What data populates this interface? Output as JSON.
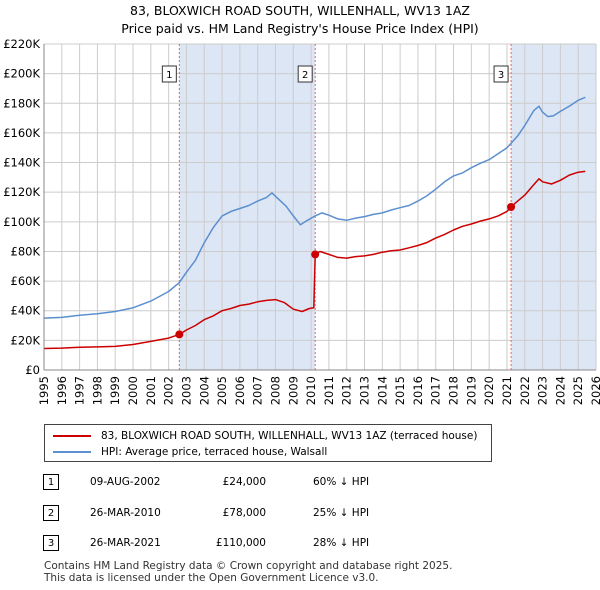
{
  "title_line1": "83, BLOXWICH ROAD SOUTH, WILLENHALL, WV13 1AZ",
  "title_line2": "Price paid vs. HM Land Registry's House Price Index (HPI)",
  "colors": {
    "property": "#cc0000",
    "hpi": "#5b8fd0",
    "shade": "#dde6f5",
    "grid": "#cccccc"
  },
  "chart_data": {
    "type": "line",
    "xlim": [
      1995,
      2026
    ],
    "ylim": [
      0,
      220000
    ],
    "x_ticks": [
      "1995",
      "1996",
      "1997",
      "1998",
      "1999",
      "2000",
      "2001",
      "2002",
      "2003",
      "2004",
      "2005",
      "2006",
      "2007",
      "2008",
      "2009",
      "2010",
      "2011",
      "2012",
      "2013",
      "2014",
      "2015",
      "2016",
      "2017",
      "2018",
      "2019",
      "2020",
      "2021",
      "2022",
      "2023",
      "2024",
      "2025",
      "2026"
    ],
    "y_ticks": [
      {
        "value": 0,
        "label": "£0"
      },
      {
        "value": 20000,
        "label": "£20K"
      },
      {
        "value": 40000,
        "label": "£40K"
      },
      {
        "value": 60000,
        "label": "£60K"
      },
      {
        "value": 80000,
        "label": "£80K"
      },
      {
        "value": 100000,
        "label": "£100K"
      },
      {
        "value": 120000,
        "label": "£120K"
      },
      {
        "value": 140000,
        "label": "£140K"
      },
      {
        "value": 160000,
        "label": "£160K"
      },
      {
        "value": 180000,
        "label": "£180K"
      },
      {
        "value": 200000,
        "label": "£200K"
      },
      {
        "value": 220000,
        "label": "£220K"
      }
    ],
    "shaded_ranges": [
      [
        2002.6,
        2010.23
      ],
      [
        2021.23,
        2026
      ]
    ],
    "series": [
      {
        "name": "83, BLOXWICH ROAD SOUTH, WILLENHALL, WV13 1AZ (terraced house)",
        "color": "#cc0000",
        "points": [
          [
            1995.0,
            14500
          ],
          [
            1996.0,
            14800
          ],
          [
            1997.0,
            15300
          ],
          [
            1998.0,
            15600
          ],
          [
            1999.0,
            15900
          ],
          [
            2000.0,
            17200
          ],
          [
            2001.0,
            19300
          ],
          [
            2002.0,
            21500
          ],
          [
            2002.6,
            24000
          ],
          [
            2003.0,
            27000
          ],
          [
            2003.5,
            30000
          ],
          [
            2004.0,
            34000
          ],
          [
            2004.5,
            36500
          ],
          [
            2005.0,
            40000
          ],
          [
            2005.5,
            41500
          ],
          [
            2006.0,
            43500
          ],
          [
            2006.5,
            44500
          ],
          [
            2007.0,
            46000
          ],
          [
            2007.5,
            47000
          ],
          [
            2008.0,
            47500
          ],
          [
            2008.5,
            45500
          ],
          [
            2009.0,
            41000
          ],
          [
            2009.5,
            39500
          ],
          [
            2009.9,
            41500
          ],
          [
            2010.15,
            42000
          ],
          [
            2010.23,
            78000
          ],
          [
            2010.5,
            80000
          ],
          [
            2011.0,
            78000
          ],
          [
            2011.5,
            76000
          ],
          [
            2012.0,
            75500
          ],
          [
            2012.5,
            76500
          ],
          [
            2013.0,
            77000
          ],
          [
            2013.5,
            78000
          ],
          [
            2014.0,
            79500
          ],
          [
            2014.5,
            80500
          ],
          [
            2015.0,
            81000
          ],
          [
            2015.5,
            82500
          ],
          [
            2016.0,
            84000
          ],
          [
            2016.5,
            86000
          ],
          [
            2017.0,
            89000
          ],
          [
            2017.5,
            91500
          ],
          [
            2018.0,
            94500
          ],
          [
            2018.5,
            97000
          ],
          [
            2019.0,
            98500
          ],
          [
            2019.5,
            100500
          ],
          [
            2020.0,
            102000
          ],
          [
            2020.5,
            104000
          ],
          [
            2021.0,
            107000
          ],
          [
            2021.23,
            110000
          ],
          [
            2021.5,
            113000
          ],
          [
            2022.0,
            118000
          ],
          [
            2022.5,
            125000
          ],
          [
            2022.8,
            129000
          ],
          [
            2023.0,
            127000
          ],
          [
            2023.5,
            125500
          ],
          [
            2024.0,
            128000
          ],
          [
            2024.5,
            131500
          ],
          [
            2025.0,
            133500
          ],
          [
            2025.4,
            134000
          ]
        ]
      },
      {
        "name": "HPI: Average price, terraced house, Walsall",
        "color": "#5b8fd0",
        "points": [
          [
            1995.0,
            35000
          ],
          [
            1996.0,
            35500
          ],
          [
            1997.0,
            37000
          ],
          [
            1998.0,
            38000
          ],
          [
            1999.0,
            39500
          ],
          [
            2000.0,
            42000
          ],
          [
            2001.0,
            46500
          ],
          [
            2002.0,
            53000
          ],
          [
            2002.6,
            59000
          ],
          [
            2003.0,
            66000
          ],
          [
            2003.5,
            74000
          ],
          [
            2004.0,
            86000
          ],
          [
            2004.5,
            96000
          ],
          [
            2005.0,
            104000
          ],
          [
            2005.5,
            107000
          ],
          [
            2006.0,
            109000
          ],
          [
            2006.5,
            111000
          ],
          [
            2007.0,
            114000
          ],
          [
            2007.5,
            116500
          ],
          [
            2007.8,
            119500
          ],
          [
            2008.2,
            115000
          ],
          [
            2008.6,
            110500
          ],
          [
            2009.0,
            104000
          ],
          [
            2009.4,
            98000
          ],
          [
            2009.8,
            101000
          ],
          [
            2010.23,
            104000
          ],
          [
            2010.6,
            106000
          ],
          [
            2011.0,
            104500
          ],
          [
            2011.5,
            102000
          ],
          [
            2012.0,
            101000
          ],
          [
            2012.5,
            102500
          ],
          [
            2013.0,
            103500
          ],
          [
            2013.5,
            105000
          ],
          [
            2014.0,
            106000
          ],
          [
            2014.5,
            108000
          ],
          [
            2015.0,
            109500
          ],
          [
            2015.5,
            111000
          ],
          [
            2016.0,
            114000
          ],
          [
            2016.5,
            117500
          ],
          [
            2017.0,
            122000
          ],
          [
            2017.5,
            127000
          ],
          [
            2018.0,
            131000
          ],
          [
            2018.5,
            133000
          ],
          [
            2019.0,
            136500
          ],
          [
            2019.5,
            139500
          ],
          [
            2020.0,
            142000
          ],
          [
            2020.5,
            146000
          ],
          [
            2021.0,
            150000
          ],
          [
            2021.23,
            153000
          ],
          [
            2021.6,
            158000
          ],
          [
            2022.0,
            165000
          ],
          [
            2022.5,
            175000
          ],
          [
            2022.8,
            178000
          ],
          [
            2023.0,
            174000
          ],
          [
            2023.3,
            171000
          ],
          [
            2023.6,
            171500
          ],
          [
            2024.0,
            174500
          ],
          [
            2024.5,
            178000
          ],
          [
            2025.0,
            182000
          ],
          [
            2025.4,
            184000
          ]
        ]
      }
    ],
    "sales": [
      {
        "marker": "1",
        "x": 2002.6,
        "y": 24000
      },
      {
        "marker": "2",
        "x": 2010.23,
        "y": 78000
      },
      {
        "marker": "3",
        "x": 2021.23,
        "y": 110000
      }
    ]
  },
  "legend": {
    "property_label": "83, BLOXWICH ROAD SOUTH, WILLENHALL, WV13 1AZ (terraced house)",
    "hpi_label": "HPI: Average price, terraced house, Walsall"
  },
  "sales_table": [
    {
      "marker": "1",
      "date": "09-AUG-2002",
      "price": "£24,000",
      "hpi": "60% ↓ HPI"
    },
    {
      "marker": "2",
      "date": "26-MAR-2010",
      "price": "£78,000",
      "hpi": "25% ↓ HPI"
    },
    {
      "marker": "3",
      "date": "26-MAR-2021",
      "price": "£110,000",
      "hpi": "28% ↓ HPI"
    }
  ],
  "footer": {
    "line1": "Contains HM Land Registry data © Crown copyright and database right 2025.",
    "line2": "This data is licensed under the Open Government Licence v3.0."
  }
}
